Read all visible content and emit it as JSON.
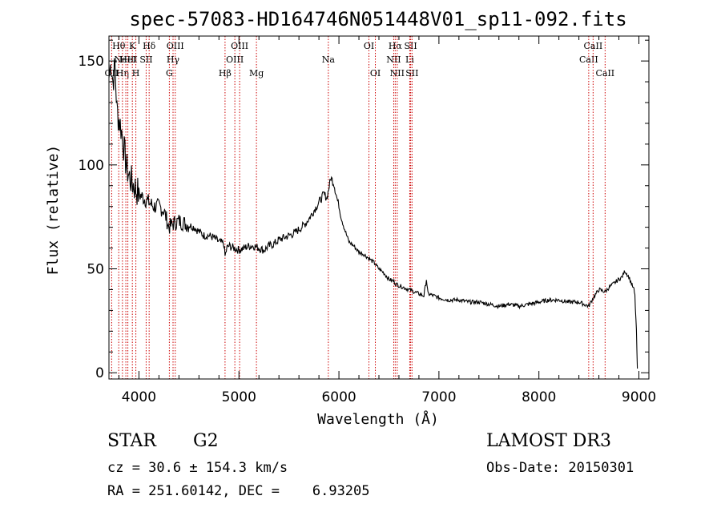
{
  "chart_data": {
    "type": "line",
    "title": "spec-57083-HD164746N051448V01_sp11-092.fits",
    "xlabel": "Wavelength (Å)",
    "ylabel": "Flux (relative)",
    "xlim": [
      3700,
      9100
    ],
    "ylim": [
      -3,
      162
    ],
    "xticks": [
      4000,
      5000,
      6000,
      7000,
      8000,
      9000
    ],
    "yticks": [
      0,
      50,
      100,
      150
    ],
    "grid": false,
    "series": [
      {
        "x": [
          3700,
          3720,
          3740,
          3760,
          3780,
          3800,
          3820,
          3840,
          3860,
          3880,
          3900,
          3925,
          3950,
          3975,
          4000,
          4050,
          4100,
          4150,
          4200,
          4250,
          4300,
          4350,
          4400,
          4450,
          4500,
          4550,
          4600,
          4650,
          4700,
          4750,
          4800,
          4850,
          4861,
          4880,
          4900,
          4950,
          5000,
          5050,
          5100,
          5150,
          5200,
          5250,
          5300,
          5350,
          5400,
          5450,
          5500,
          5550,
          5600,
          5650,
          5700,
          5750,
          5800,
          5850,
          5880,
          5920,
          5950,
          5980,
          6000,
          6020,
          6050,
          6100,
          6150,
          6200,
          6250,
          6300,
          6350,
          6400,
          6450,
          6500,
          6550,
          6563,
          6600,
          6650,
          6700,
          6750,
          6800,
          6850,
          6875,
          6890,
          6950,
          7000,
          7100,
          7200,
          7300,
          7400,
          7500,
          7600,
          7700,
          7800,
          7900,
          8000,
          8100,
          8200,
          8300,
          8400,
          8498,
          8542,
          8600,
          8662,
          8700,
          8750,
          8800,
          8830,
          8860,
          8900,
          8950,
          8960,
          8975,
          8985
        ],
        "y": [
          142,
          150,
          140,
          148,
          126,
          122,
          118,
          112,
          104,
          98,
          95,
          92,
          90,
          88,
          86,
          84,
          82,
          80,
          80,
          78,
          70,
          72,
          73,
          72,
          71,
          70,
          68,
          66,
          66,
          65,
          63,
          62,
          56,
          60,
          61,
          60,
          59,
          60,
          61,
          61,
          60,
          59,
          61,
          62,
          64,
          65,
          66,
          67,
          69,
          71,
          74,
          78,
          82,
          86,
          84,
          94,
          91,
          84,
          80,
          75,
          70,
          63,
          61,
          58,
          57,
          55,
          53,
          50,
          48,
          45,
          44,
          43,
          42,
          41,
          40,
          39,
          38,
          37,
          45,
          38,
          37,
          36,
          35,
          35,
          34,
          34,
          33,
          32,
          33,
          32,
          33,
          34,
          35,
          35,
          34,
          34,
          32,
          36,
          40,
          39,
          41,
          43,
          45,
          46,
          49,
          46,
          40,
          37,
          20,
          2
        ]
      }
    ],
    "lines": [
      {
        "x": 3727,
        "label": "OII",
        "row": 3
      },
      {
        "x": 3798,
        "label": "Hθ",
        "row": 1
      },
      {
        "x": 3835,
        "label": "Hη",
        "row": 3
      },
      {
        "x": 3869,
        "label": "NeIII",
        "row": 2
      },
      {
        "x": 3889,
        "label": "HeI",
        "row": 2
      },
      {
        "x": 3934,
        "label": "K",
        "row": 1
      },
      {
        "x": 3969,
        "label": "H",
        "row": 3
      },
      {
        "x": 4072,
        "label": "SII",
        "row": 2
      },
      {
        "x": 4102,
        "label": "Hδ",
        "row": 1
      },
      {
        "x": 4304,
        "label": "G",
        "row": 3
      },
      {
        "x": 4341,
        "label": "Hγ",
        "row": 2
      },
      {
        "x": 4363,
        "label": "OIII",
        "row": 1
      },
      {
        "x": 4861,
        "label": "Hβ",
        "row": 3
      },
      {
        "x": 4959,
        "label": "OIII",
        "row": 2
      },
      {
        "x": 5007,
        "label": "OIII",
        "row": 1
      },
      {
        "x": 5175,
        "label": "Mg",
        "row": 3
      },
      {
        "x": 5894,
        "label": "Na",
        "row": 2
      },
      {
        "x": 6300,
        "label": "OI",
        "row": 1
      },
      {
        "x": 6364,
        "label": "OI",
        "row": 3
      },
      {
        "x": 6548,
        "label": "NII",
        "row": 2
      },
      {
        "x": 6563,
        "label": "Hα",
        "row": 1
      },
      {
        "x": 6583,
        "label": "NII",
        "row": 3
      },
      {
        "x": 6708,
        "label": "Li",
        "row": 2
      },
      {
        "x": 6717,
        "label": "SII",
        "row": 1
      },
      {
        "x": 6731,
        "label": "SII",
        "row": 3
      },
      {
        "x": 8498,
        "label": "CaII",
        "row": 2
      },
      {
        "x": 8542,
        "label": "CaII",
        "row": 1
      },
      {
        "x": 8662,
        "label": "CaII",
        "row": 3
      }
    ],
    "line_color": "#000000",
    "marker_color": "#cc0000"
  },
  "info": {
    "class": "STAR",
    "subclass": "G2",
    "survey": "LAMOST DR3",
    "cz": "cz = 30.6 ± 154.3 km/s",
    "obs_date": "Obs-Date: 20150301",
    "coords": "RA = 251.60142, DEC =    6.93205"
  }
}
